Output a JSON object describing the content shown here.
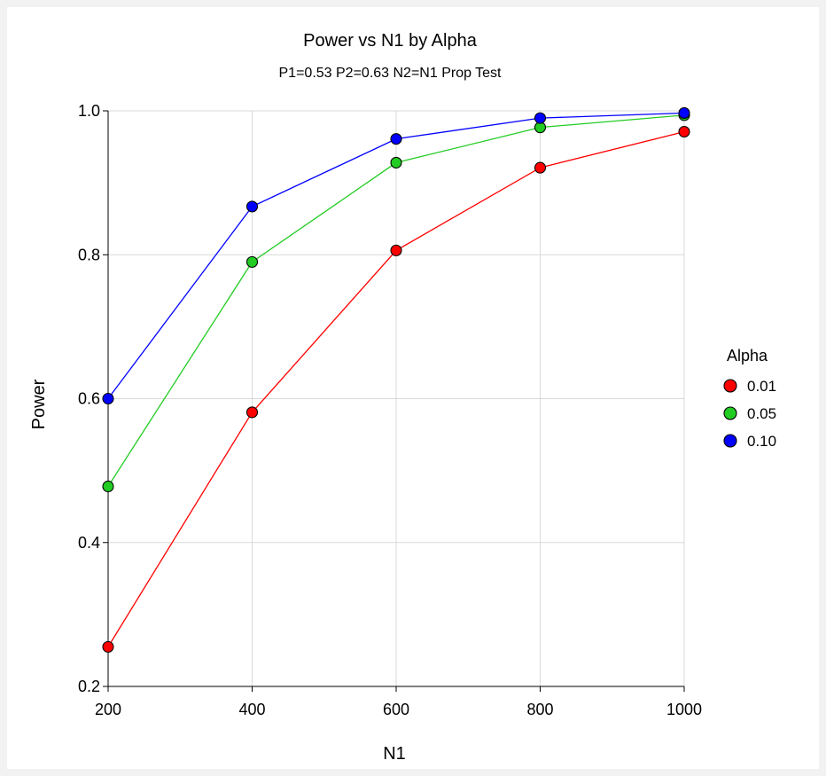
{
  "chart_data": {
    "type": "line",
    "title": "Power vs N1 by Alpha",
    "subtitle": "P1=0.53 P2=0.63 N2=N1 Prop Test",
    "xlabel": "N1",
    "ylabel": "Power",
    "x": [
      200,
      400,
      600,
      800,
      1000
    ],
    "xlim": [
      200,
      1000
    ],
    "ylim": [
      0.2,
      1.0
    ],
    "x_ticks": [
      "200",
      "400",
      "600",
      "800",
      "1000"
    ],
    "y_ticks": [
      "0.2",
      "0.4",
      "0.6",
      "0.8",
      "1.0"
    ],
    "x_tick_values": [
      200,
      400,
      600,
      800,
      1000
    ],
    "y_tick_values": [
      0.2,
      0.4,
      0.6,
      0.8,
      1.0
    ],
    "grid": true,
    "legend_title": "Alpha",
    "legend_position": "right",
    "series": [
      {
        "name": "0.01",
        "color": "#ff0000",
        "values": [
          0.255,
          0.581,
          0.806,
          0.921,
          0.971
        ]
      },
      {
        "name": "0.05",
        "color": "#22cc22",
        "values": [
          0.478,
          0.79,
          0.928,
          0.977,
          0.994
        ]
      },
      {
        "name": "0.10",
        "color": "#0000ff",
        "values": [
          0.6,
          0.867,
          0.961,
          0.99,
          0.997
        ]
      }
    ]
  }
}
